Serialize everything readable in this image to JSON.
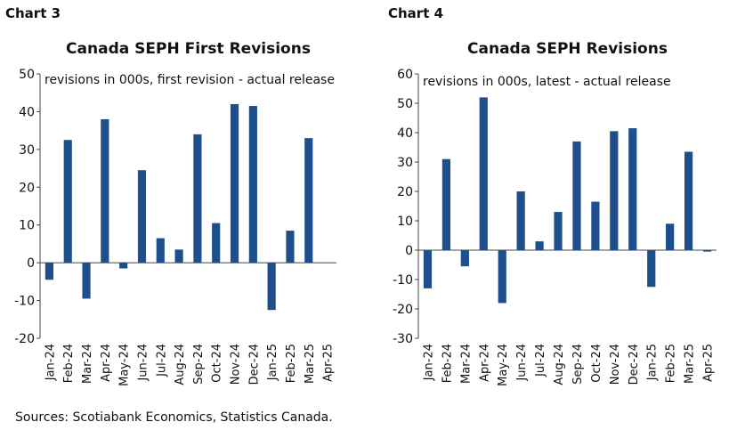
{
  "chart_data": [
    {
      "type": "bar",
      "label": "Chart 3",
      "title": "Canada SEPH First Revisions",
      "subtitle": "revisions in 000s, first revision - actual release",
      "source": "Sources: Scotiabank Economics, Statistics Canada.",
      "categories": [
        "Jan-24",
        "Feb-24",
        "Mar-24",
        "Apr-24",
        "May-24",
        "Jun-24",
        "Jul-24",
        "Aug-24",
        "Sep-24",
        "Oct-24",
        "Nov-24",
        "Dec-24",
        "Jan-25",
        "Feb-25",
        "Mar-25",
        "Apr-25"
      ],
      "values": [
        -4.5,
        32.5,
        -9.5,
        38,
        -1.5,
        24.5,
        6.5,
        3.5,
        34,
        10.5,
        42,
        41.5,
        -12.5,
        8.5,
        33,
        null
      ],
      "color": "#1f4e8c",
      "ylim": [
        -20,
        50
      ],
      "yticks": [
        -20,
        -10,
        0,
        10,
        20,
        30,
        40,
        50
      ],
      "grid": false
    },
    {
      "type": "bar",
      "label": "Chart 4",
      "title": "Canada SEPH Revisions",
      "subtitle": "revisions in 000s, latest - actual release",
      "source": "Sources: Scotiabank Economics, Statistics Canada.",
      "categories": [
        "Jan-24",
        "Feb-24",
        "Mar-24",
        "Apr-24",
        "May-24",
        "Jun-24",
        "Jul-24",
        "Aug-24",
        "Sep-24",
        "Oct-24",
        "Nov-24",
        "Dec-24",
        "Jan-25",
        "Feb-25",
        "Mar-25",
        "Apr-25"
      ],
      "values": [
        -13,
        31,
        -5.5,
        52,
        -18,
        20,
        3,
        13,
        37,
        16.5,
        40.5,
        41.5,
        -12.5,
        9,
        33.5,
        -0.5
      ],
      "color": "#1f4e8c",
      "ylim": [
        -30,
        60
      ],
      "yticks": [
        -30,
        -20,
        -10,
        0,
        10,
        20,
        30,
        40,
        50,
        60
      ],
      "grid": false
    }
  ]
}
